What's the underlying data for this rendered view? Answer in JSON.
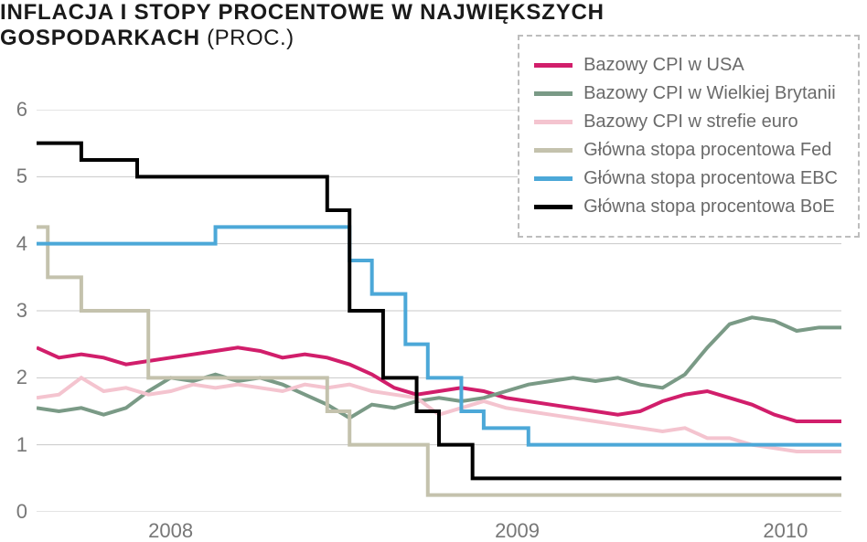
{
  "title_line1": "INFLACJA I STOPY PROCENTOWE W NAJWIĘKSZYCH",
  "title_line2_bold": "GOSPODARKACH",
  "title_line2_light": " (PROC.)",
  "chart": {
    "type": "line-step",
    "background_color": "#ffffff",
    "grid_color": "#c8c8c8",
    "axis_label_color": "#777777",
    "axis_label_fontsize": 22,
    "legend_border_color": "#bdbdbd",
    "legend_label_color": "#6a6a6a",
    "legend_label_fontsize": 20,
    "title_color": "#1a1a1a",
    "title_fontsize": 24,
    "line_width": 4,
    "ylim": [
      0,
      6
    ],
    "yticks": [
      0,
      1,
      2,
      3,
      4,
      5,
      6
    ],
    "xlim": [
      0,
      36
    ],
    "xticks": [
      {
        "pos": 6,
        "label": "2008"
      },
      {
        "pos": 21.5,
        "label": "2009"
      },
      {
        "pos": 33.5,
        "label": "2010"
      }
    ],
    "series": [
      {
        "id": "cpi_usa",
        "label": "Bazowy CPI w USA",
        "color": "#d11e6b",
        "mode": "line",
        "x": [
          0,
          1,
          2,
          3,
          4,
          5,
          6,
          7,
          8,
          9,
          10,
          11,
          12,
          13,
          14,
          15,
          16,
          17,
          18,
          19,
          20,
          21,
          22,
          23,
          24,
          25,
          26,
          27,
          28,
          29,
          30,
          31,
          32,
          33,
          34,
          35,
          36
        ],
        "y": [
          2.45,
          2.3,
          2.35,
          2.3,
          2.2,
          2.25,
          2.3,
          2.35,
          2.4,
          2.45,
          2.4,
          2.3,
          2.35,
          2.3,
          2.2,
          2.05,
          1.85,
          1.75,
          1.8,
          1.85,
          1.8,
          1.7,
          1.65,
          1.6,
          1.55,
          1.5,
          1.45,
          1.5,
          1.65,
          1.75,
          1.8,
          1.7,
          1.6,
          1.45,
          1.35,
          1.35,
          1.35
        ]
      },
      {
        "id": "cpi_uk",
        "label": "Bazowy CPI w Wielkiej Brytanii",
        "color": "#7a9a86",
        "mode": "line",
        "x": [
          0,
          1,
          2,
          3,
          4,
          5,
          6,
          7,
          8,
          9,
          10,
          11,
          12,
          13,
          14,
          15,
          16,
          17,
          18,
          19,
          20,
          21,
          22,
          23,
          24,
          25,
          26,
          27,
          28,
          29,
          30,
          31,
          32,
          33,
          34,
          35,
          36
        ],
        "y": [
          1.55,
          1.5,
          1.55,
          1.45,
          1.55,
          1.8,
          2.0,
          1.95,
          2.05,
          1.95,
          2.0,
          1.9,
          1.75,
          1.6,
          1.4,
          1.6,
          1.55,
          1.65,
          1.7,
          1.65,
          1.7,
          1.8,
          1.9,
          1.95,
          2.0,
          1.95,
          2.0,
          1.9,
          1.85,
          2.05,
          2.45,
          2.8,
          2.9,
          2.85,
          2.7,
          2.75,
          2.75
        ]
      },
      {
        "id": "cpi_euro",
        "label": "Bazowy CPI w strefie euro",
        "color": "#f4c4cf",
        "mode": "line",
        "x": [
          0,
          1,
          2,
          3,
          4,
          5,
          6,
          7,
          8,
          9,
          10,
          11,
          12,
          13,
          14,
          15,
          16,
          17,
          18,
          19,
          20,
          21,
          22,
          23,
          24,
          25,
          26,
          27,
          28,
          29,
          30,
          31,
          32,
          33,
          34,
          35,
          36
        ],
        "y": [
          1.7,
          1.75,
          2.0,
          1.8,
          1.85,
          1.75,
          1.8,
          1.9,
          1.85,
          1.9,
          1.85,
          1.8,
          1.9,
          1.85,
          1.9,
          1.8,
          1.75,
          1.7,
          1.45,
          1.55,
          1.65,
          1.55,
          1.5,
          1.45,
          1.4,
          1.35,
          1.3,
          1.25,
          1.2,
          1.25,
          1.1,
          1.1,
          1.0,
          0.95,
          0.9,
          0.9,
          0.9
        ]
      },
      {
        "id": "fed",
        "label": "Główna stopa procentowa Fed",
        "color": "#c4c2ad",
        "mode": "step",
        "x": [
          0,
          0.5,
          2,
          2.5,
          5,
          12,
          13,
          14,
          15.5,
          17.5,
          36
        ],
        "y": [
          4.25,
          3.5,
          3.0,
          3.0,
          2.0,
          2.0,
          1.5,
          1.0,
          1.0,
          0.25,
          0.25
        ]
      },
      {
        "id": "ecb",
        "label": "Główna stopa procentowa EBC",
        "color": "#4ca8d8",
        "mode": "step",
        "x": [
          0,
          8,
          14,
          15,
          16.5,
          17.5,
          19,
          20,
          22,
          36
        ],
        "y": [
          4.0,
          4.25,
          3.75,
          3.25,
          2.5,
          2.0,
          1.5,
          1.25,
          1.0,
          1.0
        ]
      },
      {
        "id": "boe",
        "label": "Główna stopa procentowa BoE",
        "color": "#000000",
        "mode": "step",
        "x": [
          0,
          2,
          4.5,
          13,
          14,
          15.5,
          17,
          18,
          19.5,
          36
        ],
        "y": [
          5.5,
          5.25,
          5.0,
          4.5,
          3.0,
          2.0,
          1.5,
          1.0,
          0.5,
          0.5
        ]
      }
    ]
  }
}
